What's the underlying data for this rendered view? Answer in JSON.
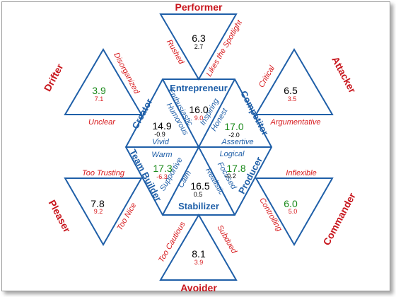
{
  "colors": {
    "blue": "#1f5fa8",
    "red": "#c8161d",
    "green": "#1a8a1a",
    "black": "#000000",
    "sub_red": "#d7191c"
  },
  "center": {
    "entrepreneur": {
      "title": "Entrepreneur",
      "trait1": "Enthusiastic",
      "trait2": "Inspiring",
      "score": "16.0",
      "delta": "9.0"
    },
    "competitor": {
      "title": "Competitor",
      "trait1": "Honest",
      "trait2": "Assertive",
      "score": "17.0",
      "delta": "-2.0"
    },
    "producer": {
      "title": "Producer",
      "trait1": "Logical",
      "trait2": "Focused",
      "score": "17.8",
      "delta": "-0.2"
    },
    "stabilizer": {
      "title": "Stabilizer",
      "trait1": "Calm",
      "trait2": "Realistic",
      "score": "16.5",
      "delta": "0.5"
    },
    "team_builder": {
      "title": "Team Builder",
      "trait1": "Warm",
      "trait2": "Supportive",
      "score": "17.3",
      "delta": "-6.3"
    },
    "creator": {
      "title": "Creator",
      "trait1": "Humorous",
      "trait2": "Vivid",
      "score": "14.9",
      "delta": "-0.9"
    }
  },
  "outer": {
    "performer": {
      "title": "Performer",
      "left": "Rushed",
      "right": "Likes the Spotlight",
      "score": "6.3",
      "sub": "2.7"
    },
    "attacker": {
      "title": "Attacker",
      "left": "Critical",
      "right": "Argumentative",
      "score": "6.5",
      "sub": "3.5"
    },
    "commander": {
      "title": "Commander",
      "left": "Inflexible",
      "right": "Controlling",
      "score": "6.0",
      "sub": "5.0"
    },
    "avoider": {
      "title": "Avoider",
      "left": "Too Cautious",
      "right": "Subdued",
      "score": "8.1",
      "sub": "3.9"
    },
    "pleaser": {
      "title": "Pleaser",
      "left": "Too Trusting",
      "right": "Too Nice",
      "score": "7.8",
      "sub": "9.2"
    },
    "drifter": {
      "title": "Drifter",
      "left": "Disorganized",
      "right": "Unclear",
      "score": "3.9",
      "sub": "7.1"
    }
  }
}
